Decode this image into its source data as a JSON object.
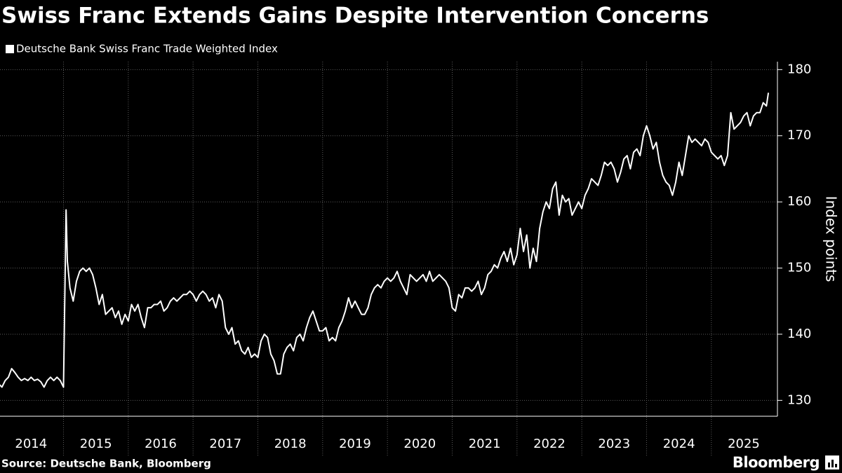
{
  "chart_data": {
    "type": "line",
    "title": "Swiss Franc Extends Gains Despite Intervention Concerns",
    "y_label": "Index points",
    "source": "Source: Deutsche Bank, Bloomberg",
    "brand": "Bloomberg",
    "legend": "top-left",
    "grid": true,
    "xlim": [
      2014.02,
      2026.02
    ],
    "ylim": [
      127.6,
      181.2
    ],
    "yticks": [
      130,
      140,
      150,
      160,
      170,
      180
    ],
    "xgrid": [
      2015,
      2016,
      2017,
      2018,
      2019,
      2020,
      2021,
      2022,
      2023,
      2024,
      2025
    ],
    "xticks": [
      {
        "value": 2014.5,
        "label": "2014"
      },
      {
        "value": 2015.5,
        "label": "2015"
      },
      {
        "value": 2016.5,
        "label": "2016"
      },
      {
        "value": 2017.5,
        "label": "2017"
      },
      {
        "value": 2018.5,
        "label": "2018"
      },
      {
        "value": 2019.5,
        "label": "2019"
      },
      {
        "value": 2020.5,
        "label": "2020"
      },
      {
        "value": 2021.5,
        "label": "2021"
      },
      {
        "value": 2022.5,
        "label": "2022"
      },
      {
        "value": 2023.5,
        "label": "2023"
      },
      {
        "value": 2024.5,
        "label": "2024"
      },
      {
        "value": 2025.5,
        "label": "2025"
      }
    ],
    "x": [
      2014.0,
      2014.05,
      2014.1,
      2014.15,
      2014.2,
      2014.25,
      2014.3,
      2014.35,
      2014.4,
      2014.45,
      2014.5,
      2014.55,
      2014.6,
      2014.65,
      2014.7,
      2014.75,
      2014.8,
      2014.85,
      2014.9,
      2014.95,
      2015.0,
      2015.04,
      2015.06,
      2015.1,
      2015.15,
      2015.2,
      2015.25,
      2015.3,
      2015.35,
      2015.4,
      2015.45,
      2015.5,
      2015.55,
      2015.6,
      2015.65,
      2015.7,
      2015.75,
      2015.8,
      2015.85,
      2015.9,
      2015.95,
      2016.0,
      2016.05,
      2016.1,
      2016.15,
      2016.2,
      2016.25,
      2016.3,
      2016.35,
      2016.4,
      2016.45,
      2016.5,
      2016.55,
      2016.6,
      2016.65,
      2016.7,
      2016.75,
      2016.8,
      2016.85,
      2016.9,
      2016.95,
      2017.0,
      2017.05,
      2017.1,
      2017.15,
      2017.2,
      2017.25,
      2017.3,
      2017.35,
      2017.4,
      2017.45,
      2017.5,
      2017.55,
      2017.6,
      2017.65,
      2017.7,
      2017.75,
      2017.8,
      2017.85,
      2017.9,
      2017.95,
      2018.0,
      2018.05,
      2018.1,
      2018.15,
      2018.2,
      2018.25,
      2018.3,
      2018.35,
      2018.4,
      2018.45,
      2018.5,
      2018.55,
      2018.6,
      2018.65,
      2018.7,
      2018.75,
      2018.8,
      2018.85,
      2018.9,
      2018.95,
      2019.0,
      2019.05,
      2019.1,
      2019.15,
      2019.2,
      2019.25,
      2019.3,
      2019.35,
      2019.4,
      2019.45,
      2019.5,
      2019.55,
      2019.6,
      2019.65,
      2019.7,
      2019.75,
      2019.8,
      2019.85,
      2019.9,
      2019.95,
      2020.0,
      2020.05,
      2020.1,
      2020.15,
      2020.2,
      2020.25,
      2020.3,
      2020.35,
      2020.4,
      2020.45,
      2020.5,
      2020.55,
      2020.6,
      2020.65,
      2020.7,
      2020.75,
      2020.8,
      2020.85,
      2020.9,
      2020.95,
      2021.0,
      2021.05,
      2021.1,
      2021.15,
      2021.2,
      2021.25,
      2021.3,
      2021.35,
      2021.4,
      2021.45,
      2021.5,
      2021.55,
      2021.6,
      2021.65,
      2021.7,
      2021.75,
      2021.8,
      2021.85,
      2021.9,
      2021.95,
      2022.0,
      2022.05,
      2022.1,
      2022.15,
      2022.2,
      2022.25,
      2022.3,
      2022.35,
      2022.4,
      2022.45,
      2022.5,
      2022.55,
      2022.6,
      2022.65,
      2022.7,
      2022.75,
      2022.8,
      2022.85,
      2022.9,
      2022.95,
      2023.0,
      2023.05,
      2023.1,
      2023.15,
      2023.2,
      2023.25,
      2023.3,
      2023.35,
      2023.4,
      2023.45,
      2023.5,
      2023.55,
      2023.6,
      2023.65,
      2023.7,
      2023.75,
      2023.8,
      2023.85,
      2023.9,
      2023.95,
      2024.0,
      2024.05,
      2024.1,
      2024.15,
      2024.2,
      2024.25,
      2024.3,
      2024.35,
      2024.4,
      2024.45,
      2024.5,
      2024.55,
      2024.6,
      2024.65,
      2024.7,
      2024.75,
      2024.8,
      2024.85,
      2024.9,
      2024.95,
      2025.0,
      2025.05,
      2025.1,
      2025.15,
      2025.2,
      2025.25,
      2025.3,
      2025.35,
      2025.4,
      2025.45,
      2025.5,
      2025.55,
      2025.6,
      2025.65,
      2025.7,
      2025.75,
      2025.8,
      2025.85,
      2025.88
    ],
    "series": [
      {
        "name": "Deutsche Bank Swiss Franc Trade Weighted Index",
        "color": "#ffffff",
        "values": [
          132.5,
          132.0,
          133.0,
          133.5,
          134.8,
          134.2,
          133.5,
          133.0,
          133.3,
          133.0,
          133.5,
          133.0,
          133.2,
          132.8,
          132.0,
          133.0,
          133.5,
          133.0,
          133.5,
          133.0,
          132.0,
          158.8,
          151.0,
          147.0,
          145.0,
          148.0,
          149.5,
          150.0,
          149.5,
          150.0,
          149.0,
          147.0,
          144.5,
          146.0,
          143.0,
          143.5,
          144.0,
          142.5,
          143.5,
          141.5,
          143.0,
          142.0,
          144.5,
          143.5,
          144.5,
          142.5,
          141.0,
          144.0,
          144.0,
          144.5,
          144.5,
          145.0,
          143.5,
          144.0,
          145.0,
          145.5,
          145.0,
          145.5,
          146.0,
          146.0,
          146.5,
          146.0,
          145.0,
          146.0,
          146.5,
          146.0,
          145.0,
          145.5,
          144.0,
          146.0,
          145.0,
          141.0,
          140.0,
          141.0,
          138.5,
          139.0,
          137.5,
          137.0,
          138.0,
          136.5,
          137.0,
          136.5,
          139.0,
          140.0,
          139.5,
          137.0,
          136.0,
          134.0,
          134.0,
          137.0,
          138.0,
          138.5,
          137.5,
          139.5,
          140.0,
          139.0,
          141.0,
          142.5,
          143.5,
          142.0,
          140.5,
          140.5,
          141.0,
          139.0,
          139.5,
          139.0,
          141.0,
          142.0,
          143.5,
          145.5,
          144.0,
          145.0,
          144.0,
          143.0,
          143.0,
          144.0,
          146.0,
          147.0,
          147.5,
          147.0,
          148.0,
          148.5,
          148.0,
          148.5,
          149.5,
          148.0,
          147.0,
          146.0,
          149.0,
          148.5,
          148.0,
          148.5,
          149.0,
          148.0,
          149.5,
          148.0,
          148.5,
          149.0,
          148.5,
          148.0,
          147.0,
          144.0,
          143.5,
          146.0,
          145.5,
          147.0,
          147.0,
          146.5,
          147.0,
          148.0,
          146.0,
          147.0,
          149.0,
          149.5,
          150.5,
          150.0,
          151.5,
          152.5,
          151.0,
          153.0,
          150.5,
          152.0,
          156.0,
          152.5,
          155.0,
          150.0,
          153.0,
          151.0,
          156.0,
          158.5,
          160.0,
          159.0,
          162.0,
          163.0,
          158.0,
          161.0,
          160.0,
          160.5,
          158.0,
          159.0,
          160.0,
          159.0,
          161.0,
          162.0,
          163.5,
          163.0,
          162.5,
          164.0,
          166.0,
          165.5,
          166.0,
          165.0,
          163.0,
          164.5,
          166.5,
          167.0,
          165.0,
          167.5,
          168.0,
          167.0,
          170.0,
          171.5,
          170.0,
          168.0,
          169.0,
          166.0,
          164.0,
          163.0,
          162.5,
          161.0,
          163.0,
          166.0,
          164.0,
          167.0,
          170.0,
          169.0,
          169.5,
          169.0,
          168.5,
          169.5,
          169.0,
          167.5,
          167.0,
          166.5,
          167.0,
          165.5,
          167.0,
          173.5,
          171.0,
          171.5,
          172.0,
          173.0,
          173.5,
          171.5,
          173.0,
          173.5,
          173.5,
          175.0,
          174.5,
          176.5
        ]
      }
    ]
  }
}
